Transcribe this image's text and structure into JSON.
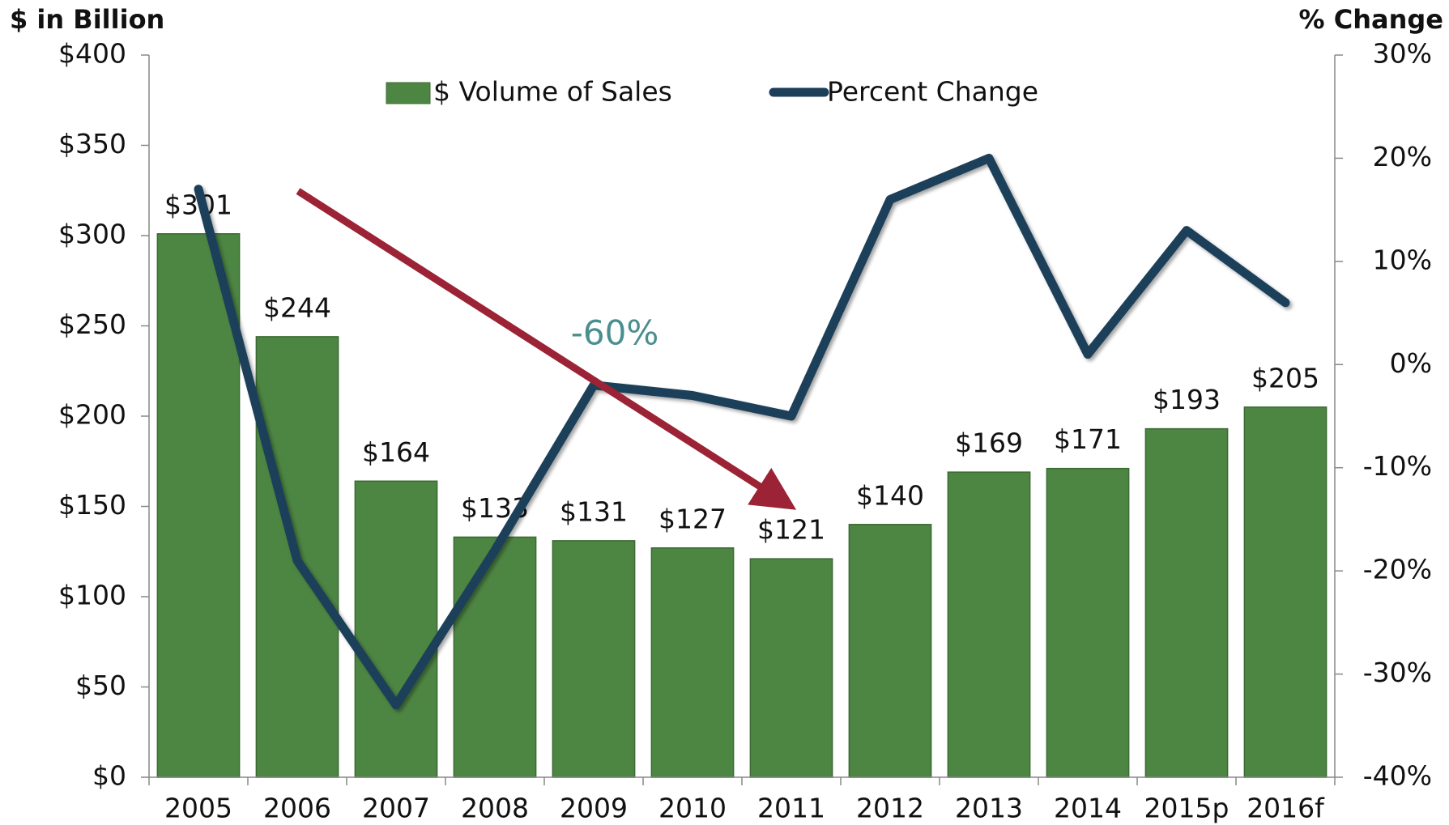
{
  "chart_data": {
    "type": "bar",
    "y_axis_title": "$ in Billion",
    "y2_axis_title": "% Change",
    "annotation": "-60%",
    "categories": [
      "2005",
      "2006",
      "2007",
      "2008",
      "2009",
      "2010",
      "2011",
      "2012",
      "2013",
      "2014",
      "2015p",
      "2016f"
    ],
    "series": [
      {
        "name": "$ Volume of Sales",
        "type": "bar",
        "color": "#4d8543",
        "values": [
          301,
          244,
          164,
          133,
          131,
          127,
          121,
          140,
          169,
          171,
          193,
          205
        ],
        "value_labels": [
          "$301",
          "$244",
          "$164",
          "$133",
          "$131",
          "$127",
          "$121",
          "$140",
          "$169",
          "$171",
          "$193",
          "$205"
        ]
      },
      {
        "name": "Percent Change",
        "type": "line",
        "axis": "y2",
        "color": "#1c3f5a",
        "values": [
          17,
          -19,
          -33,
          -18,
          -2,
          -3,
          -5,
          16,
          20,
          1,
          13,
          6
        ]
      }
    ],
    "ylim": [
      0,
      400
    ],
    "yticks": [
      {
        "value": 0,
        "label": "$0"
      },
      {
        "value": 50,
        "label": "$50"
      },
      {
        "value": 100,
        "label": "$100"
      },
      {
        "value": 150,
        "label": "$150"
      },
      {
        "value": 200,
        "label": "$200"
      },
      {
        "value": 250,
        "label": "$250"
      },
      {
        "value": 300,
        "label": "$300"
      },
      {
        "value": 350,
        "label": "$350"
      },
      {
        "value": 400,
        "label": "$400"
      }
    ],
    "y2lim": [
      -40,
      30
    ],
    "y2ticks": [
      {
        "value": -40,
        "label": "-40%"
      },
      {
        "value": -30,
        "label": "-30%"
      },
      {
        "value": -20,
        "label": "-20%"
      },
      {
        "value": -10,
        "label": "-10%"
      },
      {
        "value": 0,
        "label": "0%"
      },
      {
        "value": 10,
        "label": "10%"
      },
      {
        "value": 20,
        "label": "20%"
      },
      {
        "value": 30,
        "label": "30%"
      }
    ],
    "legend": "top"
  }
}
